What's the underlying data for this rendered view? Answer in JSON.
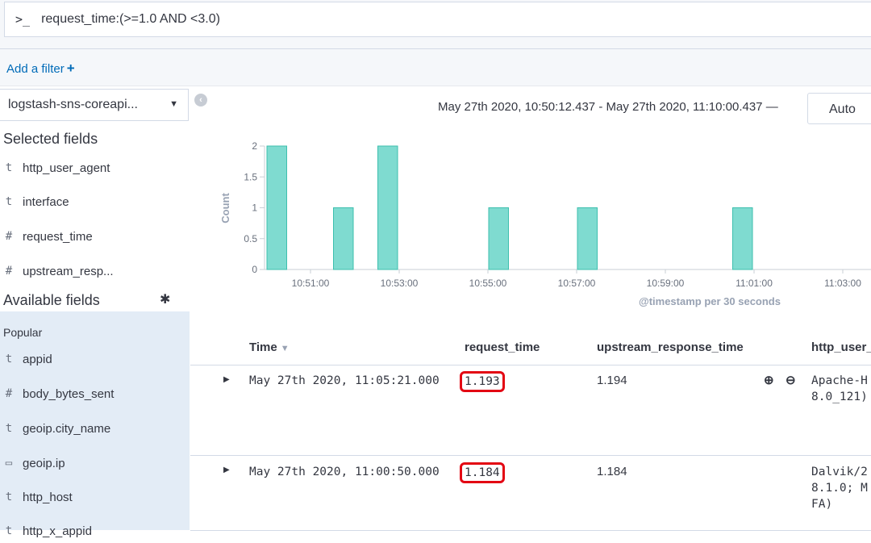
{
  "query": {
    "prompt_icon": ">_",
    "text": "request_time:(>=1.0 AND <3.0)"
  },
  "filter": {
    "add_label": "Add a filter",
    "plus": "+"
  },
  "sidebar": {
    "index_pattern": "logstash-sns-coreapi...",
    "collapse_icon": "‹",
    "selected_title": "Selected fields",
    "selected_fields": [
      {
        "type": "t",
        "name": "http_user_agent"
      },
      {
        "type": "t",
        "name": "interface"
      },
      {
        "type": "#",
        "name": "request_time"
      },
      {
        "type": "#",
        "name": "upstream_resp..."
      }
    ],
    "available_title": "Available fields",
    "popular_label": "Popular",
    "available_fields": [
      {
        "type": "t",
        "name": "appid"
      },
      {
        "type": "#",
        "name": "body_bytes_sent"
      },
      {
        "type": "t",
        "name": "geoip.city_name"
      },
      {
        "type": "▭",
        "name": "geoip.ip"
      },
      {
        "type": "t",
        "name": "http_host"
      },
      {
        "type": "t",
        "name": "http_x_appid"
      }
    ]
  },
  "header": {
    "time_range": "May 27th 2020, 10:50:12.437 - May 27th 2020, 11:10:00.437 —",
    "interval": "Auto"
  },
  "chart_data": {
    "type": "bar",
    "ylabel": "Count",
    "xlabel": "@timestamp per 30 seconds",
    "ylim": [
      0,
      2
    ],
    "y_ticks": [
      "0",
      "0.5",
      "1",
      "1.5",
      "2"
    ],
    "x_ticks": [
      "10:51:00",
      "10:53:00",
      "10:55:00",
      "10:57:00",
      "10:59:00",
      "11:01:00",
      "11:03:00"
    ],
    "bar_color": "#7fdbd0",
    "bars": [
      {
        "x": "10:50:00",
        "value": 2
      },
      {
        "x": "10:51:30",
        "value": 1
      },
      {
        "x": "10:52:30",
        "value": 2
      },
      {
        "x": "10:55:00",
        "value": 1
      },
      {
        "x": "10:57:00",
        "value": 1
      },
      {
        "x": "11:00:30",
        "value": 1
      }
    ]
  },
  "table": {
    "columns": [
      "Time",
      "request_time",
      "upstream_response_time",
      "http_user_"
    ],
    "rows": [
      {
        "time": "May 27th 2020, 11:05:21.000",
        "request_time": "1.193",
        "upstream": "1.194",
        "agent": "Apache-H\n8.0_121)"
      },
      {
        "time": "May 27th 2020, 11:00:50.000",
        "request_time": "1.184",
        "upstream": "1.184",
        "agent": "Dalvik/2\n8.1.0; M\nFA)"
      }
    ]
  }
}
